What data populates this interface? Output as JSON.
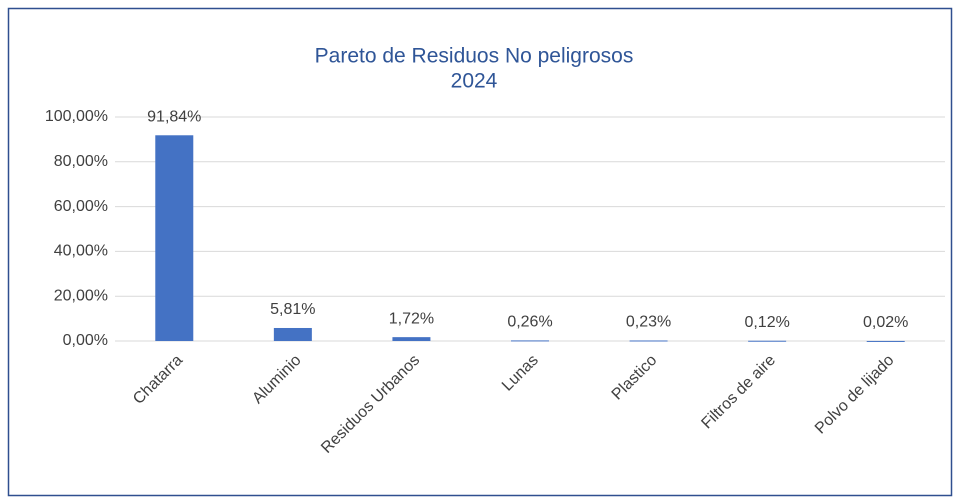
{
  "chart_data": {
    "type": "bar",
    "title": "Pareto de Residuos No peligrosos",
    "subtitle": "2024",
    "categories": [
      "Chatarra",
      "Aluminio",
      "Residuos Urbanos",
      "Lunas",
      "Plastico",
      "Filtros de aire",
      "Polvo de lijado"
    ],
    "values": [
      91.84,
      5.81,
      1.72,
      0.26,
      0.23,
      0.12,
      0.02
    ],
    "value_labels": [
      "91,84%",
      "5,81%",
      "1,72%",
      "0,26%",
      "0,23%",
      "0,12%",
      "0,02%"
    ],
    "color": "#4472c4",
    "ylim": [
      0,
      100
    ],
    "yticks": [
      {
        "value": 0,
        "label": "0,00%"
      },
      {
        "value": 20,
        "label": "20,00%"
      },
      {
        "value": 40,
        "label": "40,00%"
      },
      {
        "value": 60,
        "label": "60,00%"
      },
      {
        "value": 80,
        "label": "80,00%"
      },
      {
        "value": 100,
        "label": "100,00%"
      }
    ],
    "grid": true
  }
}
